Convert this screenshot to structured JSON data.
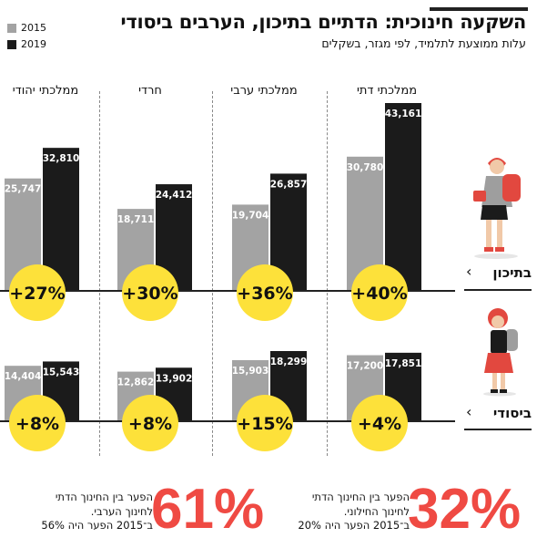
{
  "title": "השקעה חינוכית: הדתיים בתיכון, הערבים ביסודי",
  "subtitle": "עלות ממוצעת לתלמיד, לפי מגזר, בשקלים",
  "colors": {
    "y2015": "#a3a3a3",
    "y2019": "#1b1b1b",
    "circle": "#fde13a",
    "accent": "#ef4a43"
  },
  "chart_data": {
    "type": "bar",
    "title": "השקעה חינוכית: הדתיים בתיכון, הערבים ביסודי",
    "subtitle": "עלות ממוצעת לתלמיד, לפי מגזר, בשקלים",
    "legend": [
      "2015",
      "2019"
    ],
    "legend_position": "top-left",
    "categories": [
      "ממלכתי יהודי",
      "חרדי",
      "ממלכתי ערבי",
      "ממלכתי דתי"
    ],
    "panels": [
      {
        "row": "בתיכון",
        "series": [
          {
            "name": "2015",
            "values": [
              25747,
              18711,
              19704,
              30780
            ]
          },
          {
            "name": "2019",
            "values": [
              32810,
              24412,
              26857,
              43161
            ]
          }
        ],
        "labels_2015": [
          "25,747",
          "18,711",
          "19,704",
          "30,780"
        ],
        "labels_2019": [
          "32,810",
          "24,412",
          "26,857",
          "43,161"
        ],
        "change": [
          "+27%",
          "+30%",
          "+36%",
          "+40%"
        ]
      },
      {
        "row": "ביסודי",
        "series": [
          {
            "name": "2015",
            "values": [
              14404,
              12862,
              15903,
              17200
            ]
          },
          {
            "name": "2019",
            "values": [
              15543,
              13902,
              18299,
              17851
            ]
          }
        ],
        "labels_2015": [
          "14,404",
          "12,862",
          "15,903",
          "17,200"
        ],
        "labels_2019": [
          "15,543",
          "13,902",
          "18,299",
          "17,851"
        ],
        "change": [
          "+8%",
          "+8%",
          "+15%",
          "+4%"
        ]
      }
    ]
  },
  "notes": [
    {
      "value": "61%",
      "lines": [
        "הפער בין החינוך הדתי",
        "לחינוך הערבי.",
        "ב־2015 הפער היה 56%"
      ]
    },
    {
      "value": "32%",
      "lines": [
        "הפער בין החינוך הדתי",
        "לחינוך החילוני.",
        "ב־2015 הפער היה 20%"
      ]
    }
  ]
}
